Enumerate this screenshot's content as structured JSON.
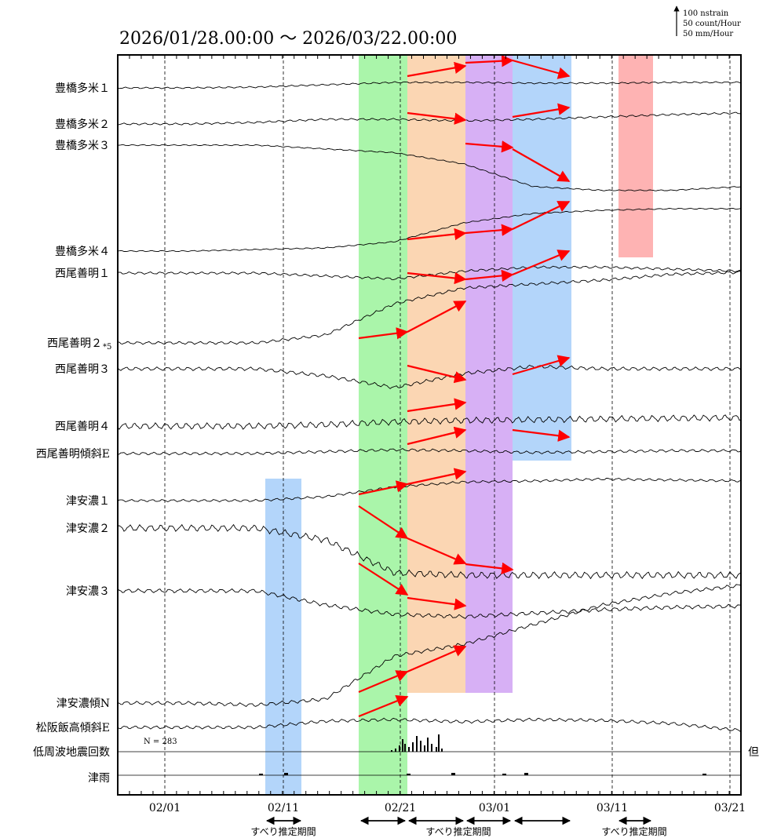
{
  "chart_data": {
    "type": "line",
    "title": "2026/01/28.00:00 ～ 2026/03/22.00:00",
    "scale_legend": [
      "100 nstrain",
      "50 count/Hour",
      "50 mm/Hour"
    ],
    "x_ticks": [
      "02/01",
      "02/11",
      "02/21",
      "03/01",
      "03/11",
      "03/21"
    ],
    "x_range": [
      "2026/01/28",
      "2026/03/22"
    ],
    "series": [
      {
        "name": "豊橋多米１",
        "trend": [
          0,
          0,
          0.05,
          0.2,
          0.35,
          0.35,
          0.3,
          0.3,
          0.35,
          0.35
        ]
      },
      {
        "name": "豊橋多米２",
        "trend": [
          0,
          0,
          0.1,
          0.3,
          0.3,
          0.2,
          0.3,
          0.45,
          0.6,
          0.7
        ]
      },
      {
        "name": "豊橋多米３",
        "trend": [
          0,
          0,
          0,
          -0.1,
          -0.2,
          -0.5,
          -1.1,
          -1.2,
          -1.2,
          -1.1
        ]
      },
      {
        "name": "豊橋多米４",
        "trend": [
          0,
          0,
          0.05,
          0.1,
          0.3,
          0.9,
          1.2,
          1.3,
          1.35,
          1.35
        ]
      },
      {
        "name": "西尾善明１",
        "trend": [
          0,
          0,
          0,
          -0.15,
          -0.3,
          0.1,
          0.3,
          0.3,
          0.2,
          0.1
        ]
      },
      {
        "name": "西尾善明２",
        "note": "*5",
        "trend": [
          0,
          0,
          0,
          0.2,
          1.0,
          1.4,
          1.5,
          1.6,
          1.75,
          1.8
        ]
      },
      {
        "name": "西尾善明３",
        "trend": [
          0,
          0,
          0,
          -0.3,
          -0.8,
          -0.2,
          0.1,
          0.0,
          0.0,
          0.0
        ]
      },
      {
        "name": "西尾善明４",
        "trend": [
          0,
          0,
          0,
          0.1,
          0.3,
          0.4,
          0.45,
          0.5,
          0.55,
          0.6
        ]
      },
      {
        "name": "西尾善明傾斜E",
        "trend": [
          0,
          0,
          0,
          0.2,
          0.4,
          0.3,
          0.1,
          0.2,
          0.3,
          0.3
        ]
      },
      {
        "name": "津安濃１",
        "trend": [
          0,
          0,
          0,
          0.2,
          0.7,
          0.95,
          1.0,
          1.1,
          1.05,
          1.0
        ]
      },
      {
        "name": "津安濃２",
        "trend": [
          0,
          0,
          0,
          -0.5,
          -1.9,
          -2.0,
          -2.0,
          -2.0,
          -2.0,
          -2.0
        ]
      },
      {
        "name": "津安濃３",
        "trend": [
          0,
          0,
          0,
          -0.6,
          -1.0,
          -1.1,
          -0.95,
          -0.8,
          -0.7,
          -0.65
        ]
      },
      {
        "name": "津安濃傾N",
        "trend": [
          0,
          0,
          -0.05,
          0.1,
          1.2,
          1.5,
          2.0,
          2.5,
          2.8,
          3.0
        ]
      },
      {
        "name": "松阪飯高傾斜E",
        "trend": [
          0,
          0,
          0,
          0.4,
          0.5,
          0.35,
          0.5,
          0.45,
          0.25,
          -0.2
        ]
      }
    ],
    "eq_count_label": "低周波地震回数",
    "eq_count_n": "N = 283",
    "eq_right_label": "但",
    "rain_label": "津雨",
    "shaded_periods": [
      {
        "color": "#b3d5fa",
        "start": "02/08.0",
        "end": "02/11.0"
      },
      {
        "color": "#aaf5aa",
        "start": "02/17.0",
        "end": "02/21.0"
      },
      {
        "color": "#fbd6b3",
        "start": "02/21.0",
        "end": "02/26.0"
      },
      {
        "color": "#d7b0f5",
        "start": "02/26.0",
        "end": "03/02.0"
      },
      {
        "color": "#b3d5fa",
        "start": "03/02.0",
        "end": "03/07.0"
      },
      {
        "color": "#feb3b3",
        "start": "03/12.0",
        "end": "03/15.0"
      }
    ],
    "slip_label": "すべり推定期間",
    "arrow_color": "#ff0000"
  }
}
